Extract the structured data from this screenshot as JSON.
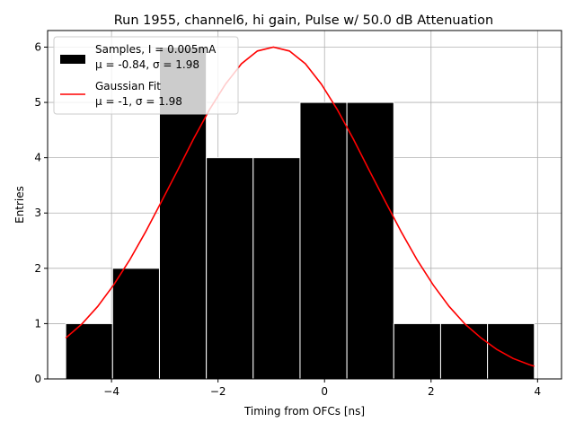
{
  "chart_data": {
    "type": "bar",
    "title": "Run 1955, channel6, hi gain, Pulse w/ 50.0 dB Attenuation",
    "xlabel": "Timing from OFCs [ns]",
    "ylabel": "Entries",
    "xlim": [
      -5.2,
      4.45
    ],
    "ylim": [
      0,
      6.3
    ],
    "xticks": [
      -4,
      -2,
      0,
      2,
      4
    ],
    "xtick_labels": [
      "−4",
      "−2",
      "0",
      "2",
      "4"
    ],
    "yticks": [
      0,
      1,
      2,
      3,
      4,
      5,
      6
    ],
    "ytick_labels": [
      "0",
      "1",
      "2",
      "3",
      "4",
      "5",
      "6"
    ],
    "grid": true,
    "legend_position": "top-left",
    "histogram": {
      "bin_edges": [
        -4.86,
        -3.98,
        -3.1,
        -2.22,
        -1.34,
        -0.46,
        0.42,
        1.3,
        2.18,
        3.06,
        3.94
      ],
      "counts": [
        1,
        2,
        6,
        4,
        4,
        5,
        5,
        1,
        1,
        1
      ],
      "color": "#000000",
      "edgecolor": "#ffffff",
      "legend_line1": "Samples, I = 0.005mA",
      "legend_line2": "μ = -0.84, σ = 1.98"
    },
    "fit": {
      "x": [
        -4.86,
        -4.56,
        -4.26,
        -3.96,
        -3.66,
        -3.36,
        -3.06,
        -2.76,
        -2.46,
        -2.16,
        -1.86,
        -1.56,
        -1.26,
        -0.96,
        -0.66,
        -0.36,
        -0.06,
        0.24,
        0.54,
        0.84,
        1.14,
        1.44,
        1.74,
        2.04,
        2.34,
        2.64,
        2.94,
        3.24,
        3.54,
        3.84,
        3.94
      ],
      "y": [
        0.74,
        0.99,
        1.31,
        1.7,
        2.15,
        2.66,
        3.21,
        3.77,
        4.34,
        4.87,
        5.33,
        5.7,
        5.93,
        6.0,
        5.93,
        5.7,
        5.33,
        4.87,
        4.34,
        3.77,
        3.21,
        2.66,
        2.15,
        1.7,
        1.31,
        0.99,
        0.74,
        0.53,
        0.37,
        0.26,
        0.23
      ],
      "color": "#ff0000",
      "legend_line1": "Gaussian Fit",
      "legend_line2": "μ = -1, σ = 1.98"
    }
  }
}
